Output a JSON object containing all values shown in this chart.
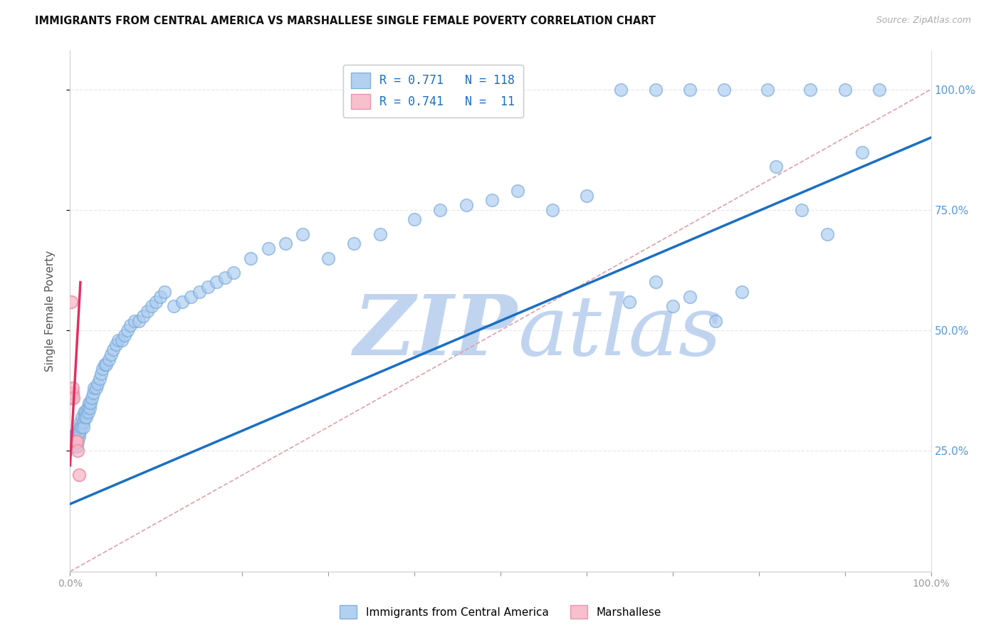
{
  "title": "IMMIGRANTS FROM CENTRAL AMERICA VS MARSHALLESE SINGLE FEMALE POVERTY CORRELATION CHART",
  "source": "Source: ZipAtlas.com",
  "ylabel": "Single Female Poverty",
  "legend_label_blue": "Immigrants from Central America",
  "legend_label_pink": "Marshallese",
  "R_blue": "0.771",
  "N_blue": "118",
  "R_pink": "0.741",
  "N_pink": "11",
  "blue_face_color": "#aaccf0",
  "blue_edge_color": "#7aaad8",
  "pink_face_color": "#f8b8c8",
  "pink_edge_color": "#e890a8",
  "blue_line_color": "#1a6fc4",
  "pink_line_color": "#e03060",
  "ref_line_color": "#e0a0a8",
  "ref_line_style": "--",
  "watermark_zip_color": "#c0d4f0",
  "watermark_atlas_color": "#c0d4f0",
  "right_tick_color": "#5599dd",
  "background_color": "#ffffff",
  "grid_color": "#e8e8e8",
  "xlim": [
    0.0,
    1.0
  ],
  "ylim": [
    0.0,
    1.08
  ],
  "blue_trend_x0": 0.0,
  "blue_trend_y0": 0.14,
  "blue_trend_x1": 1.0,
  "blue_trend_y1": 0.9,
  "pink_trend_x0": 0.0,
  "pink_trend_y0": 0.22,
  "pink_trend_x1": 0.012,
  "pink_trend_y1": 0.6,
  "blue_x": [
    0.001,
    0.001,
    0.001,
    0.001,
    0.002,
    0.002,
    0.002,
    0.002,
    0.002,
    0.003,
    0.003,
    0.003,
    0.003,
    0.003,
    0.004,
    0.004,
    0.004,
    0.004,
    0.005,
    0.005,
    0.005,
    0.005,
    0.006,
    0.006,
    0.006,
    0.007,
    0.007,
    0.007,
    0.008,
    0.008,
    0.008,
    0.009,
    0.009,
    0.01,
    0.01,
    0.011,
    0.011,
    0.012,
    0.013,
    0.014,
    0.015,
    0.015,
    0.016,
    0.017,
    0.018,
    0.019,
    0.02,
    0.021,
    0.022,
    0.023,
    0.024,
    0.025,
    0.027,
    0.028,
    0.03,
    0.032,
    0.034,
    0.036,
    0.038,
    0.04,
    0.042,
    0.045,
    0.048,
    0.05,
    0.053,
    0.056,
    0.06,
    0.063,
    0.067,
    0.07,
    0.075,
    0.08,
    0.085,
    0.09,
    0.095,
    0.1,
    0.105,
    0.11,
    0.12,
    0.13,
    0.14,
    0.15,
    0.16,
    0.17,
    0.18,
    0.19,
    0.21,
    0.23,
    0.25,
    0.27,
    0.3,
    0.33,
    0.36,
    0.4,
    0.43,
    0.46,
    0.49,
    0.52,
    0.56,
    0.6,
    0.64,
    0.68,
    0.72,
    0.76,
    0.81,
    0.86,
    0.9,
    0.94,
    0.65,
    0.68,
    0.7,
    0.72,
    0.75,
    0.78,
    0.82,
    0.85,
    0.88,
    0.92
  ],
  "blue_y": [
    0.27,
    0.28,
    0.27,
    0.26,
    0.28,
    0.27,
    0.26,
    0.28,
    0.27,
    0.28,
    0.27,
    0.26,
    0.27,
    0.28,
    0.27,
    0.26,
    0.28,
    0.27,
    0.28,
    0.27,
    0.26,
    0.28,
    0.27,
    0.26,
    0.28,
    0.27,
    0.26,
    0.28,
    0.28,
    0.27,
    0.26,
    0.28,
    0.27,
    0.29,
    0.28,
    0.3,
    0.29,
    0.31,
    0.3,
    0.32,
    0.31,
    0.3,
    0.33,
    0.32,
    0.33,
    0.32,
    0.34,
    0.33,
    0.35,
    0.34,
    0.35,
    0.36,
    0.37,
    0.38,
    0.38,
    0.39,
    0.4,
    0.41,
    0.42,
    0.43,
    0.43,
    0.44,
    0.45,
    0.46,
    0.47,
    0.48,
    0.48,
    0.49,
    0.5,
    0.51,
    0.52,
    0.52,
    0.53,
    0.54,
    0.55,
    0.56,
    0.57,
    0.58,
    0.55,
    0.56,
    0.57,
    0.58,
    0.59,
    0.6,
    0.61,
    0.62,
    0.65,
    0.67,
    0.68,
    0.7,
    0.65,
    0.68,
    0.7,
    0.73,
    0.75,
    0.76,
    0.77,
    0.79,
    0.75,
    0.78,
    1.0,
    1.0,
    1.0,
    1.0,
    1.0,
    1.0,
    1.0,
    1.0,
    0.56,
    0.6,
    0.55,
    0.57,
    0.52,
    0.58,
    0.84,
    0.75,
    0.7,
    0.87
  ],
  "pink_x": [
    0.001,
    0.002,
    0.002,
    0.003,
    0.003,
    0.004,
    0.006,
    0.007,
    0.008,
    0.009,
    0.01
  ],
  "pink_y": [
    0.56,
    0.36,
    0.37,
    0.37,
    0.38,
    0.36,
    0.27,
    0.27,
    0.27,
    0.25,
    0.2
  ]
}
